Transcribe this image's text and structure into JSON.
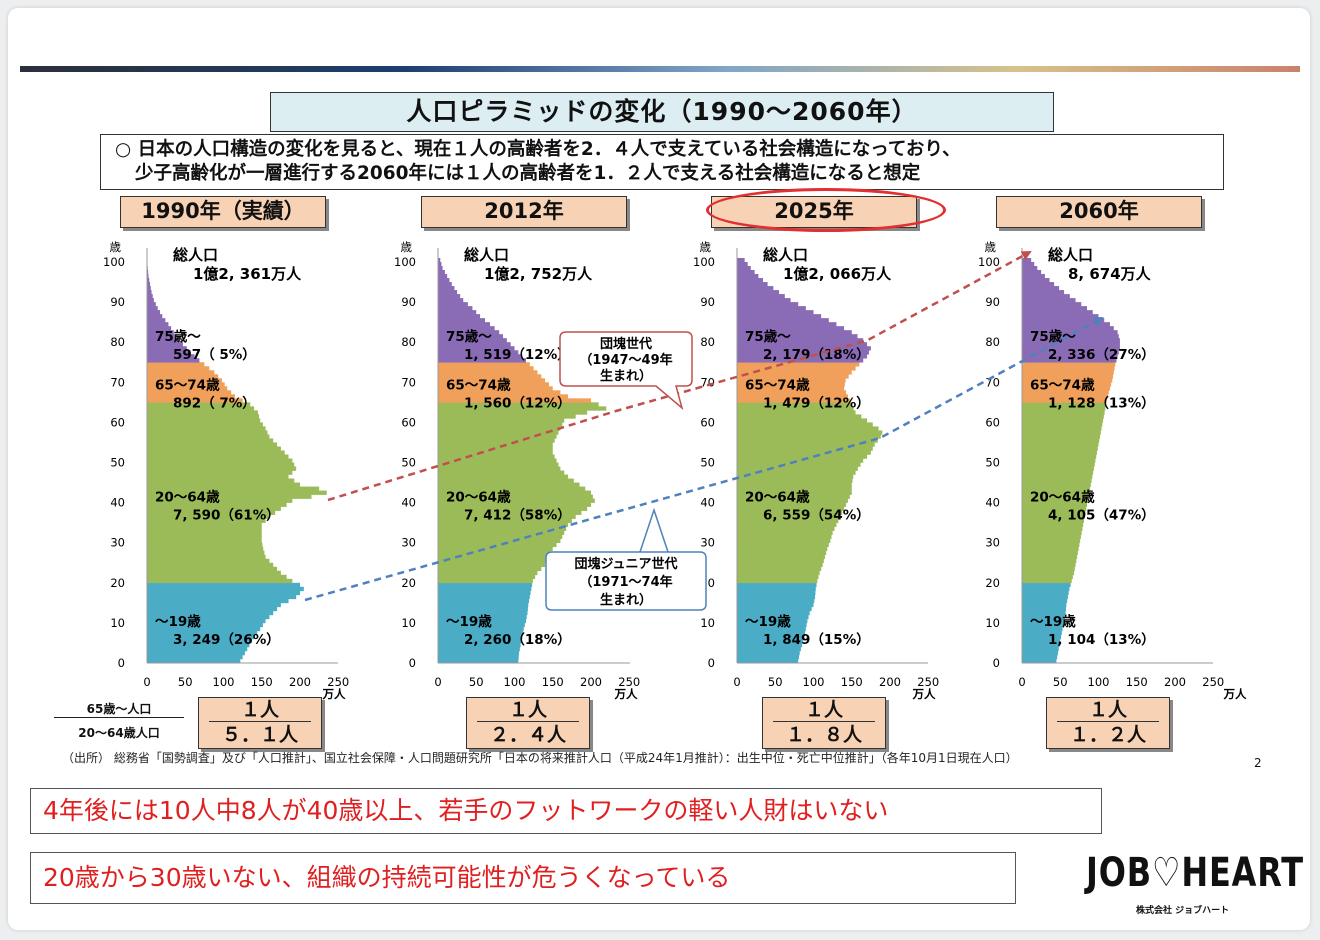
{
  "title": "人口ピラミッドの変化（1990～2060年）",
  "summary": [
    "○ 日本の人口構造の変化を見ると、現在１人の高齢者を2．４人で支えている社会構造になっており、",
    "少子高齢化が一層進行する2060年には１人の高齢者を1．２人で支える社会構造になると想定"
  ],
  "ratio_label": {
    "numerator": "65歳～人口",
    "denominator": "20～64歳人口"
  },
  "source": "（出所） 総務省「国勢調査」及び「人口推計」、国立社会保障・人口問題研究所「日本の将来推計人口（平成24年1月推計）：出生中位・死亡中位推計」（各年10月1日現在人口）",
  "page_number": "2",
  "messages": [
    "4年後には10人中8人が40歳以上、若手のフットワークの軽い人財はいない",
    "20歳から30歳いない、組織の持続可能性が危うくなっている"
  ],
  "logo": {
    "name": "JOB♡HEART",
    "company": "株式会社 ジョブハート"
  },
  "colors": {
    "age75": "#8a6bb5",
    "age65": "#f0a05a",
    "age20": "#9bbb59",
    "age0": "#4bacc6",
    "arrow_red": "#c0504d",
    "arrow_blue": "#4f81bd",
    "highlight": "#e23030"
  },
  "chart_data": {
    "type": "bar",
    "orientation": "horizontal",
    "ylabel": "歳",
    "xlabel": "万人",
    "yticks": [
      "0",
      "10",
      "20",
      "30",
      "40",
      "50",
      "60",
      "70",
      "80",
      "90",
      "100"
    ],
    "xticks": [
      "0",
      "50",
      "100",
      "150",
      "200",
      "250"
    ],
    "ylim": [
      0,
      100
    ],
    "xlim": [
      0,
      250
    ],
    "total_label": "総人口",
    "annotations": [
      {
        "title": "団塊世代",
        "years": "（1947～49年",
        "note": "生まれ）"
      },
      {
        "title": "団塊ジュニア世代",
        "years": "（1971～74年",
        "note": "生まれ）"
      }
    ],
    "panels": [
      {
        "year": "1990年（実績）",
        "total": "1億2, 361万人",
        "groups": [
          {
            "label": "75歳～",
            "value": "597（ 5%）"
          },
          {
            "label": "65～74歳",
            "value": "892（ 7%）"
          },
          {
            "label": "20～64歳",
            "value": "7, 590（61%）"
          },
          {
            "label": "～19歳",
            "value": "3, 249（26%）"
          }
        ],
        "ratio": {
          "num": "１人",
          "den": "５．１人"
        },
        "profile": [
          [
            0,
            122
          ],
          [
            2,
            128
          ],
          [
            4,
            134
          ],
          [
            6,
            140
          ],
          [
            8,
            148
          ],
          [
            10,
            155
          ],
          [
            12,
            165
          ],
          [
            14,
            175
          ],
          [
            15,
            185
          ],
          [
            16,
            195
          ],
          [
            17,
            200
          ],
          [
            18,
            205
          ],
          [
            19,
            200
          ],
          [
            20,
            190
          ],
          [
            22,
            175
          ],
          [
            24,
            165
          ],
          [
            26,
            155
          ],
          [
            28,
            152
          ],
          [
            30,
            150
          ],
          [
            32,
            150
          ],
          [
            34,
            150
          ],
          [
            36,
            160
          ],
          [
            38,
            175
          ],
          [
            40,
            190
          ],
          [
            41,
            215
          ],
          [
            42,
            235
          ],
          [
            43,
            225
          ],
          [
            44,
            200
          ],
          [
            46,
            185
          ],
          [
            48,
            195
          ],
          [
            50,
            190
          ],
          [
            52,
            180
          ],
          [
            54,
            170
          ],
          [
            56,
            160
          ],
          [
            58,
            155
          ],
          [
            60,
            148
          ],
          [
            62,
            145
          ],
          [
            64,
            135
          ],
          [
            66,
            115
          ],
          [
            68,
            105
          ],
          [
            70,
            98
          ],
          [
            72,
            88
          ],
          [
            74,
            75
          ],
          [
            76,
            62
          ],
          [
            78,
            52
          ],
          [
            80,
            42
          ],
          [
            82,
            35
          ],
          [
            84,
            28
          ],
          [
            86,
            20
          ],
          [
            88,
            14
          ],
          [
            90,
            9
          ],
          [
            92,
            6
          ],
          [
            94,
            4
          ],
          [
            96,
            2
          ],
          [
            98,
            1
          ],
          [
            100,
            0
          ]
        ]
      },
      {
        "year": "2012年",
        "total": "1億2, 752万人",
        "groups": [
          {
            "label": "75歳～",
            "value": "1, 519（12%）"
          },
          {
            "label": "65～74歳",
            "value": "1, 560（12%）"
          },
          {
            "label": "20～64歳",
            "value": "7, 412（58%）"
          },
          {
            "label": "～19歳",
            "value": "2, 260（18%）"
          }
        ],
        "ratio": {
          "num": "１人",
          "den": "２．４人"
        },
        "profile": [
          [
            0,
            105
          ],
          [
            2,
            106
          ],
          [
            4,
            108
          ],
          [
            6,
            110
          ],
          [
            8,
            112
          ],
          [
            10,
            115
          ],
          [
            12,
            117
          ],
          [
            14,
            118
          ],
          [
            16,
            120
          ],
          [
            18,
            122
          ],
          [
            20,
            124
          ],
          [
            22,
            130
          ],
          [
            24,
            140
          ],
          [
            26,
            145
          ],
          [
            28,
            150
          ],
          [
            30,
            160
          ],
          [
            32,
            165
          ],
          [
            34,
            170
          ],
          [
            36,
            180
          ],
          [
            38,
            195
          ],
          [
            40,
            205
          ],
          [
            42,
            200
          ],
          [
            44,
            185
          ],
          [
            46,
            170
          ],
          [
            48,
            160
          ],
          [
            50,
            155
          ],
          [
            52,
            150
          ],
          [
            54,
            150
          ],
          [
            56,
            155
          ],
          [
            58,
            160
          ],
          [
            60,
            165
          ],
          [
            62,
            195
          ],
          [
            63,
            220
          ],
          [
            64,
            210
          ],
          [
            65,
            200
          ],
          [
            66,
            170
          ],
          [
            68,
            150
          ],
          [
            70,
            140
          ],
          [
            72,
            130
          ],
          [
            74,
            120
          ],
          [
            76,
            110
          ],
          [
            78,
            100
          ],
          [
            80,
            90
          ],
          [
            82,
            80
          ],
          [
            84,
            68
          ],
          [
            86,
            55
          ],
          [
            88,
            45
          ],
          [
            90,
            33
          ],
          [
            92,
            25
          ],
          [
            94,
            18
          ],
          [
            96,
            12
          ],
          [
            98,
            6
          ],
          [
            100,
            3
          ]
        ]
      },
      {
        "year": "2025年",
        "total": "1億2, 066万人",
        "groups": [
          {
            "label": "75歳～",
            "value": "2, 179（18%）"
          },
          {
            "label": "65～74歳",
            "value": "1, 479（12%）"
          },
          {
            "label": "20～64歳",
            "value": "6, 559（54%）"
          },
          {
            "label": "～19歳",
            "value": "1, 849（15%）"
          }
        ],
        "ratio": {
          "num": "１人",
          "den": "１．８人"
        },
        "profile": [
          [
            0,
            80
          ],
          [
            2,
            82
          ],
          [
            4,
            85
          ],
          [
            6,
            88
          ],
          [
            8,
            90
          ],
          [
            10,
            92
          ],
          [
            12,
            95
          ],
          [
            14,
            100
          ],
          [
            16,
            102
          ],
          [
            18,
            103
          ],
          [
            20,
            105
          ],
          [
            22,
            108
          ],
          [
            24,
            112
          ],
          [
            26,
            115
          ],
          [
            28,
            118
          ],
          [
            30,
            122
          ],
          [
            32,
            125
          ],
          [
            34,
            130
          ],
          [
            36,
            135
          ],
          [
            38,
            140
          ],
          [
            40,
            145
          ],
          [
            42,
            150
          ],
          [
            44,
            150
          ],
          [
            46,
            152
          ],
          [
            48,
            158
          ],
          [
            50,
            165
          ],
          [
            52,
            175
          ],
          [
            54,
            180
          ],
          [
            56,
            188
          ],
          [
            57,
            190
          ],
          [
            58,
            185
          ],
          [
            60,
            170
          ],
          [
            62,
            155
          ],
          [
            64,
            150
          ],
          [
            66,
            145
          ],
          [
            68,
            140
          ],
          [
            70,
            142
          ],
          [
            72,
            150
          ],
          [
            74,
            160
          ],
          [
            76,
            170
          ],
          [
            78,
            175
          ],
          [
            80,
            165
          ],
          [
            82,
            150
          ],
          [
            84,
            130
          ],
          [
            86,
            110
          ],
          [
            88,
            90
          ],
          [
            90,
            70
          ],
          [
            92,
            55
          ],
          [
            94,
            40
          ],
          [
            96,
            28
          ],
          [
            98,
            18
          ],
          [
            100,
            10
          ]
        ]
      },
      {
        "year": "2060年",
        "total": "8, 674万人",
        "groups": [
          {
            "label": "75歳～",
            "value": "2, 336（27%）"
          },
          {
            "label": "65～74歳",
            "value": "1, 128（13%）"
          },
          {
            "label": "20～64歳",
            "value": "4, 105（47%）"
          },
          {
            "label": "～19歳",
            "value": "1, 104（13%）"
          }
        ],
        "ratio": {
          "num": "１人",
          "den": "１．２人"
        },
        "profile": [
          [
            0,
            45
          ],
          [
            2,
            47
          ],
          [
            4,
            49
          ],
          [
            6,
            51
          ],
          [
            8,
            53
          ],
          [
            10,
            55
          ],
          [
            12,
            57
          ],
          [
            14,
            58
          ],
          [
            16,
            60
          ],
          [
            18,
            62
          ],
          [
            20,
            65
          ],
          [
            22,
            68
          ],
          [
            24,
            70
          ],
          [
            26,
            72
          ],
          [
            28,
            74
          ],
          [
            30,
            76
          ],
          [
            32,
            78
          ],
          [
            34,
            80
          ],
          [
            36,
            82
          ],
          [
            38,
            84
          ],
          [
            40,
            86
          ],
          [
            42,
            88
          ],
          [
            44,
            90
          ],
          [
            46,
            92
          ],
          [
            48,
            94
          ],
          [
            50,
            96
          ],
          [
            52,
            98
          ],
          [
            54,
            100
          ],
          [
            56,
            102
          ],
          [
            58,
            104
          ],
          [
            60,
            106
          ],
          [
            62,
            108
          ],
          [
            64,
            110
          ],
          [
            66,
            112
          ],
          [
            68,
            115
          ],
          [
            70,
            118
          ],
          [
            72,
            120
          ],
          [
            74,
            122
          ],
          [
            76,
            125
          ],
          [
            78,
            128
          ],
          [
            80,
            128
          ],
          [
            82,
            125
          ],
          [
            84,
            115
          ],
          [
            86,
            100
          ],
          [
            88,
            85
          ],
          [
            90,
            70
          ],
          [
            92,
            55
          ],
          [
            94,
            42
          ],
          [
            96,
            30
          ],
          [
            98,
            20
          ],
          [
            100,
            12
          ]
        ]
      }
    ]
  }
}
